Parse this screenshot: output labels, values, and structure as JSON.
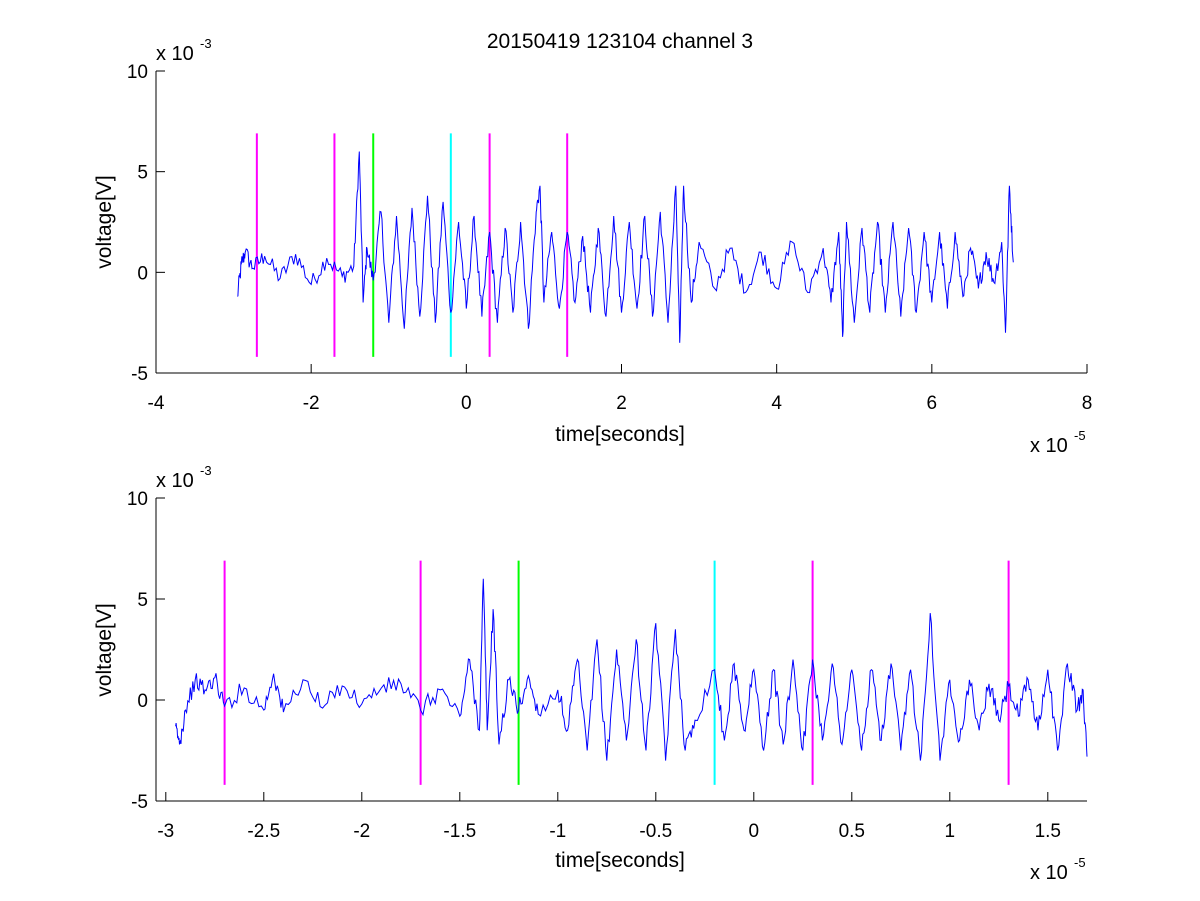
{
  "figure_title": "20150419 123104 channel 3",
  "colors": {
    "signal": "#0000ff",
    "marker_magenta": "#ff00ff",
    "marker_green": "#00ff00",
    "marker_cyan": "#00ffff",
    "axis": "#000000"
  },
  "chart_data": [
    {
      "type": "line",
      "title": "20150419 123104 channel 3",
      "xlabel": "time[seconds]",
      "ylabel": "voltage[V]",
      "x_exponent_label": "x 10",
      "x_exponent": "-5",
      "y_exponent_label": "x 10",
      "y_exponent": "-3",
      "xlim": [
        -4,
        8
      ],
      "ylim": [
        -5,
        10
      ],
      "xticks": [
        -4,
        -2,
        0,
        2,
        4,
        6,
        8
      ],
      "xtick_labels": [
        "-4",
        "-2",
        "0",
        "2",
        "4",
        "6",
        "8"
      ],
      "yticks": [
        -5,
        0,
        5,
        10
      ],
      "ytick_labels": [
        "-5",
        "0",
        "5",
        "10"
      ],
      "grid": false,
      "series": [
        {
          "x_start": -2.95,
          "x_end": 7.05,
          "style": "noisy waveform",
          "points": [
            [
              -2.95,
              -1.2
            ],
            [
              -2.9,
              0.4
            ],
            [
              -2.85,
              1.0
            ],
            [
              -2.75,
              0.2
            ],
            [
              -2.6,
              0.8
            ],
            [
              -2.4,
              -0.3
            ],
            [
              -2.2,
              0.9
            ],
            [
              -2.0,
              -0.6
            ],
            [
              -1.8,
              0.7
            ],
            [
              -1.6,
              -0.2
            ],
            [
              -1.45,
              0.3
            ],
            [
              -1.38,
              6.0
            ],
            [
              -1.33,
              -1.5
            ],
            [
              -1.28,
              1.2
            ],
            [
              -1.2,
              -0.4
            ],
            [
              -1.1,
              3.0
            ],
            [
              -1.0,
              -2.5
            ],
            [
              -0.9,
              2.8
            ],
            [
              -0.8,
              -2.8
            ],
            [
              -0.7,
              3.2
            ],
            [
              -0.6,
              -2.2
            ],
            [
              -0.5,
              3.8
            ],
            [
              -0.4,
              -2.5
            ],
            [
              -0.3,
              3.5
            ],
            [
              -0.2,
              -2.0
            ],
            [
              -0.1,
              2.5
            ],
            [
              0.0,
              -1.8
            ],
            [
              0.1,
              2.8
            ],
            [
              0.2,
              -2.2
            ],
            [
              0.3,
              2.0
            ],
            [
              0.4,
              -2.5
            ],
            [
              0.5,
              2.2
            ],
            [
              0.6,
              -2.0
            ],
            [
              0.7,
              2.5
            ],
            [
              0.8,
              -2.8
            ],
            [
              0.9,
              3.0
            ],
            [
              0.95,
              4.3
            ],
            [
              1.0,
              -1.5
            ],
            [
              1.1,
              2.0
            ],
            [
              1.2,
              -1.8
            ],
            [
              1.3,
              2.0
            ],
            [
              1.4,
              -1.5
            ],
            [
              1.5,
              1.8
            ],
            [
              1.6,
              -2.0
            ],
            [
              1.7,
              2.2
            ],
            [
              1.8,
              -2.2
            ],
            [
              1.9,
              2.8
            ],
            [
              2.0,
              -2.0
            ],
            [
              2.1,
              2.5
            ],
            [
              2.2,
              -1.8
            ],
            [
              2.3,
              2.8
            ],
            [
              2.4,
              -2.2
            ],
            [
              2.5,
              3.0
            ],
            [
              2.6,
              -2.5
            ],
            [
              2.7,
              4.3
            ],
            [
              2.75,
              -3.5
            ],
            [
              2.8,
              4.3
            ],
            [
              2.9,
              -1.5
            ],
            [
              3.0,
              1.5
            ],
            [
              3.2,
              -0.8
            ],
            [
              3.4,
              1.2
            ],
            [
              3.6,
              -1.0
            ],
            [
              3.8,
              1.0
            ],
            [
              4.0,
              -0.8
            ],
            [
              4.2,
              1.5
            ],
            [
              4.4,
              -1.0
            ],
            [
              4.6,
              1.2
            ],
            [
              4.7,
              -1.5
            ],
            [
              4.8,
              2.0
            ],
            [
              4.85,
              -3.2
            ],
            [
              4.9,
              2.5
            ],
            [
              5.0,
              -2.5
            ],
            [
              5.1,
              2.2
            ],
            [
              5.2,
              -2.0
            ],
            [
              5.3,
              2.5
            ],
            [
              5.4,
              -2.0
            ],
            [
              5.5,
              2.5
            ],
            [
              5.6,
              -2.2
            ],
            [
              5.7,
              2.2
            ],
            [
              5.8,
              -2.0
            ],
            [
              5.9,
              2.0
            ],
            [
              6.0,
              -1.5
            ],
            [
              6.1,
              2.0
            ],
            [
              6.2,
              -1.8
            ],
            [
              6.3,
              2.0
            ],
            [
              6.4,
              -1.2
            ],
            [
              6.5,
              1.2
            ],
            [
              6.6,
              -0.8
            ],
            [
              6.7,
              1.0
            ],
            [
              6.8,
              -0.5
            ],
            [
              6.9,
              1.5
            ],
            [
              6.95,
              -3.0
            ],
            [
              7.0,
              4.3
            ],
            [
              7.05,
              0.5
            ]
          ]
        }
      ],
      "markers": [
        {
          "x": -2.7,
          "color": "#ff00ff"
        },
        {
          "x": -1.7,
          "color": "#ff00ff"
        },
        {
          "x": -1.2,
          "color": "#00ff00"
        },
        {
          "x": -0.2,
          "color": "#00ffff"
        },
        {
          "x": 0.3,
          "color": "#ff00ff"
        },
        {
          "x": 1.3,
          "color": "#ff00ff"
        }
      ],
      "marker_range": [
        -4.2,
        6.9
      ]
    },
    {
      "type": "line",
      "xlabel": "time[seconds]",
      "ylabel": "voltage[V]",
      "x_exponent_label": "x 10",
      "x_exponent": "-5",
      "y_exponent_label": "x 10",
      "y_exponent": "-3",
      "xlim": [
        -3.05,
        1.7
      ],
      "ylim": [
        -5,
        10
      ],
      "xticks": [
        -3,
        -2.5,
        -2,
        -1.5,
        -1,
        -0.5,
        0,
        0.5,
        1,
        1.5
      ],
      "xtick_labels": [
        "-3",
        "-2.5",
        "-2",
        "-1.5",
        "-1",
        "-0.5",
        "0",
        "0.5",
        "1",
        "1.5"
      ],
      "yticks": [
        -5,
        0,
        5,
        10
      ],
      "ytick_labels": [
        "-5",
        "0",
        "5",
        "10"
      ],
      "grid": false,
      "series": [
        {
          "x_start": -2.95,
          "x_end": 1.7,
          "style": "noisy waveform",
          "points": [
            [
              -2.95,
              -1.3
            ],
            [
              -2.93,
              -2.2
            ],
            [
              -2.9,
              -0.5
            ],
            [
              -2.85,
              1.0
            ],
            [
              -2.8,
              0.5
            ],
            [
              -2.75,
              1.1
            ],
            [
              -2.7,
              -0.3
            ],
            [
              -2.6,
              0.6
            ],
            [
              -2.5,
              -0.5
            ],
            [
              -2.45,
              1.3
            ],
            [
              -2.4,
              -0.6
            ],
            [
              -2.3,
              1.0
            ],
            [
              -2.2,
              -0.4
            ],
            [
              -2.1,
              0.7
            ],
            [
              -2.0,
              -0.2
            ],
            [
              -1.9,
              0.6
            ],
            [
              -1.8,
              0.8
            ],
            [
              -1.7,
              -0.5
            ],
            [
              -1.6,
              0.5
            ],
            [
              -1.5,
              -0.8
            ],
            [
              -1.45,
              2.0
            ],
            [
              -1.4,
              -1.5
            ],
            [
              -1.38,
              6.0
            ],
            [
              -1.36,
              -1.5
            ],
            [
              -1.33,
              4.5
            ],
            [
              -1.3,
              -2.2
            ],
            [
              -1.25,
              1.0
            ],
            [
              -1.2,
              -0.5
            ],
            [
              -1.15,
              1.2
            ],
            [
              -1.1,
              -0.7
            ],
            [
              -1.0,
              0.5
            ],
            [
              -0.95,
              -1.5
            ],
            [
              -0.9,
              2.0
            ],
            [
              -0.85,
              -2.5
            ],
            [
              -0.8,
              3.0
            ],
            [
              -0.75,
              -3.0
            ],
            [
              -0.7,
              2.5
            ],
            [
              -0.65,
              -2.0
            ],
            [
              -0.6,
              3.0
            ],
            [
              -0.55,
              -2.5
            ],
            [
              -0.5,
              3.8
            ],
            [
              -0.45,
              -3.0
            ],
            [
              -0.4,
              3.5
            ],
            [
              -0.35,
              -2.5
            ],
            [
              -0.3,
              -1.0
            ],
            [
              -0.2,
              1.5
            ],
            [
              -0.15,
              -2.0
            ],
            [
              -0.1,
              1.8
            ],
            [
              -0.05,
              -1.5
            ],
            [
              0.0,
              1.5
            ],
            [
              0.05,
              -2.5
            ],
            [
              0.1,
              1.5
            ],
            [
              0.15,
              -2.2
            ],
            [
              0.2,
              2.0
            ],
            [
              0.25,
              -2.5
            ],
            [
              0.3,
              2.0
            ],
            [
              0.35,
              -2.0
            ],
            [
              0.4,
              1.8
            ],
            [
              0.45,
              -2.2
            ],
            [
              0.5,
              1.5
            ],
            [
              0.55,
              -2.5
            ],
            [
              0.6,
              1.5
            ],
            [
              0.65,
              -2.0
            ],
            [
              0.7,
              1.8
            ],
            [
              0.75,
              -2.5
            ],
            [
              0.8,
              1.5
            ],
            [
              0.85,
              -3.0
            ],
            [
              0.9,
              4.3
            ],
            [
              0.95,
              -3.0
            ],
            [
              1.0,
              1.0
            ],
            [
              1.05,
              -2.0
            ],
            [
              1.1,
              1.0
            ],
            [
              1.15,
              -1.5
            ],
            [
              1.2,
              0.8
            ],
            [
              1.25,
              -1.0
            ],
            [
              1.3,
              0.7
            ],
            [
              1.35,
              -0.8
            ],
            [
              1.4,
              1.0
            ],
            [
              1.45,
              -1.5
            ],
            [
              1.5,
              1.5
            ],
            [
              1.55,
              -2.5
            ],
            [
              1.6,
              1.8
            ],
            [
              1.65,
              -0.5
            ],
            [
              1.68,
              0.5
            ],
            [
              1.7,
              -2.8
            ]
          ]
        }
      ],
      "markers": [
        {
          "x": -2.7,
          "color": "#ff00ff"
        },
        {
          "x": -1.7,
          "color": "#ff00ff"
        },
        {
          "x": -1.2,
          "color": "#00ff00"
        },
        {
          "x": -0.2,
          "color": "#00ffff"
        },
        {
          "x": 0.3,
          "color": "#ff00ff"
        },
        {
          "x": 1.3,
          "color": "#ff00ff"
        }
      ],
      "marker_range": [
        -4.2,
        6.9
      ]
    }
  ]
}
